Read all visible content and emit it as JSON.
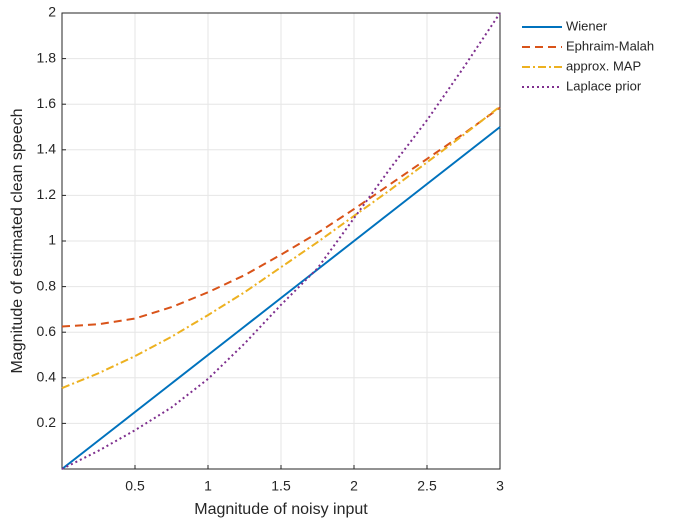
{
  "chart_data": {
    "type": "line",
    "x_label": "Magnitude of noisy input",
    "y_label": "Magnitude of estimated clean speech",
    "x": [
      0,
      0.25,
      0.5,
      0.75,
      1,
      1.25,
      1.5,
      1.75,
      2,
      2.25,
      2.5,
      2.75,
      3
    ],
    "series": [
      {
        "name": "Wiener",
        "color": "#0072BD",
        "style": "solid",
        "values": [
          0,
          0.125,
          0.25,
          0.375,
          0.5,
          0.625,
          0.75,
          0.875,
          1,
          1.125,
          1.25,
          1.375,
          1.5
        ]
      },
      {
        "name": "Ephraim-Malah",
        "color": "#D95319",
        "style": "dashed",
        "values": [
          0.625,
          0.635,
          0.66,
          0.71,
          0.775,
          0.85,
          0.94,
          1.035,
          1.14,
          1.25,
          1.36,
          1.47,
          1.585
        ]
      },
      {
        "name": "approx. MAP",
        "color": "#EDB120",
        "style": "dashdot",
        "values": [
          0.355,
          0.42,
          0.495,
          0.58,
          0.675,
          0.775,
          0.885,
          0.995,
          1.11,
          1.225,
          1.345,
          1.465,
          1.59
        ]
      },
      {
        "name": "Laplace prior",
        "color": "#7E2F8E",
        "style": "dotted",
        "values": [
          0,
          0.08,
          0.17,
          0.27,
          0.395,
          0.55,
          0.72,
          0.88,
          1.1,
          1.32,
          1.53,
          1.76,
          2
        ]
      }
    ],
    "xlim": [
      0,
      3
    ],
    "ylim": [
      0,
      2
    ],
    "xticks": [
      0.5,
      1,
      1.5,
      2,
      2.5,
      3
    ],
    "yticks": [
      0.2,
      0.4,
      0.6,
      0.8,
      1,
      1.2,
      1.4,
      1.6,
      1.8,
      2
    ],
    "grid": true,
    "legend": "outside-top-right"
  }
}
